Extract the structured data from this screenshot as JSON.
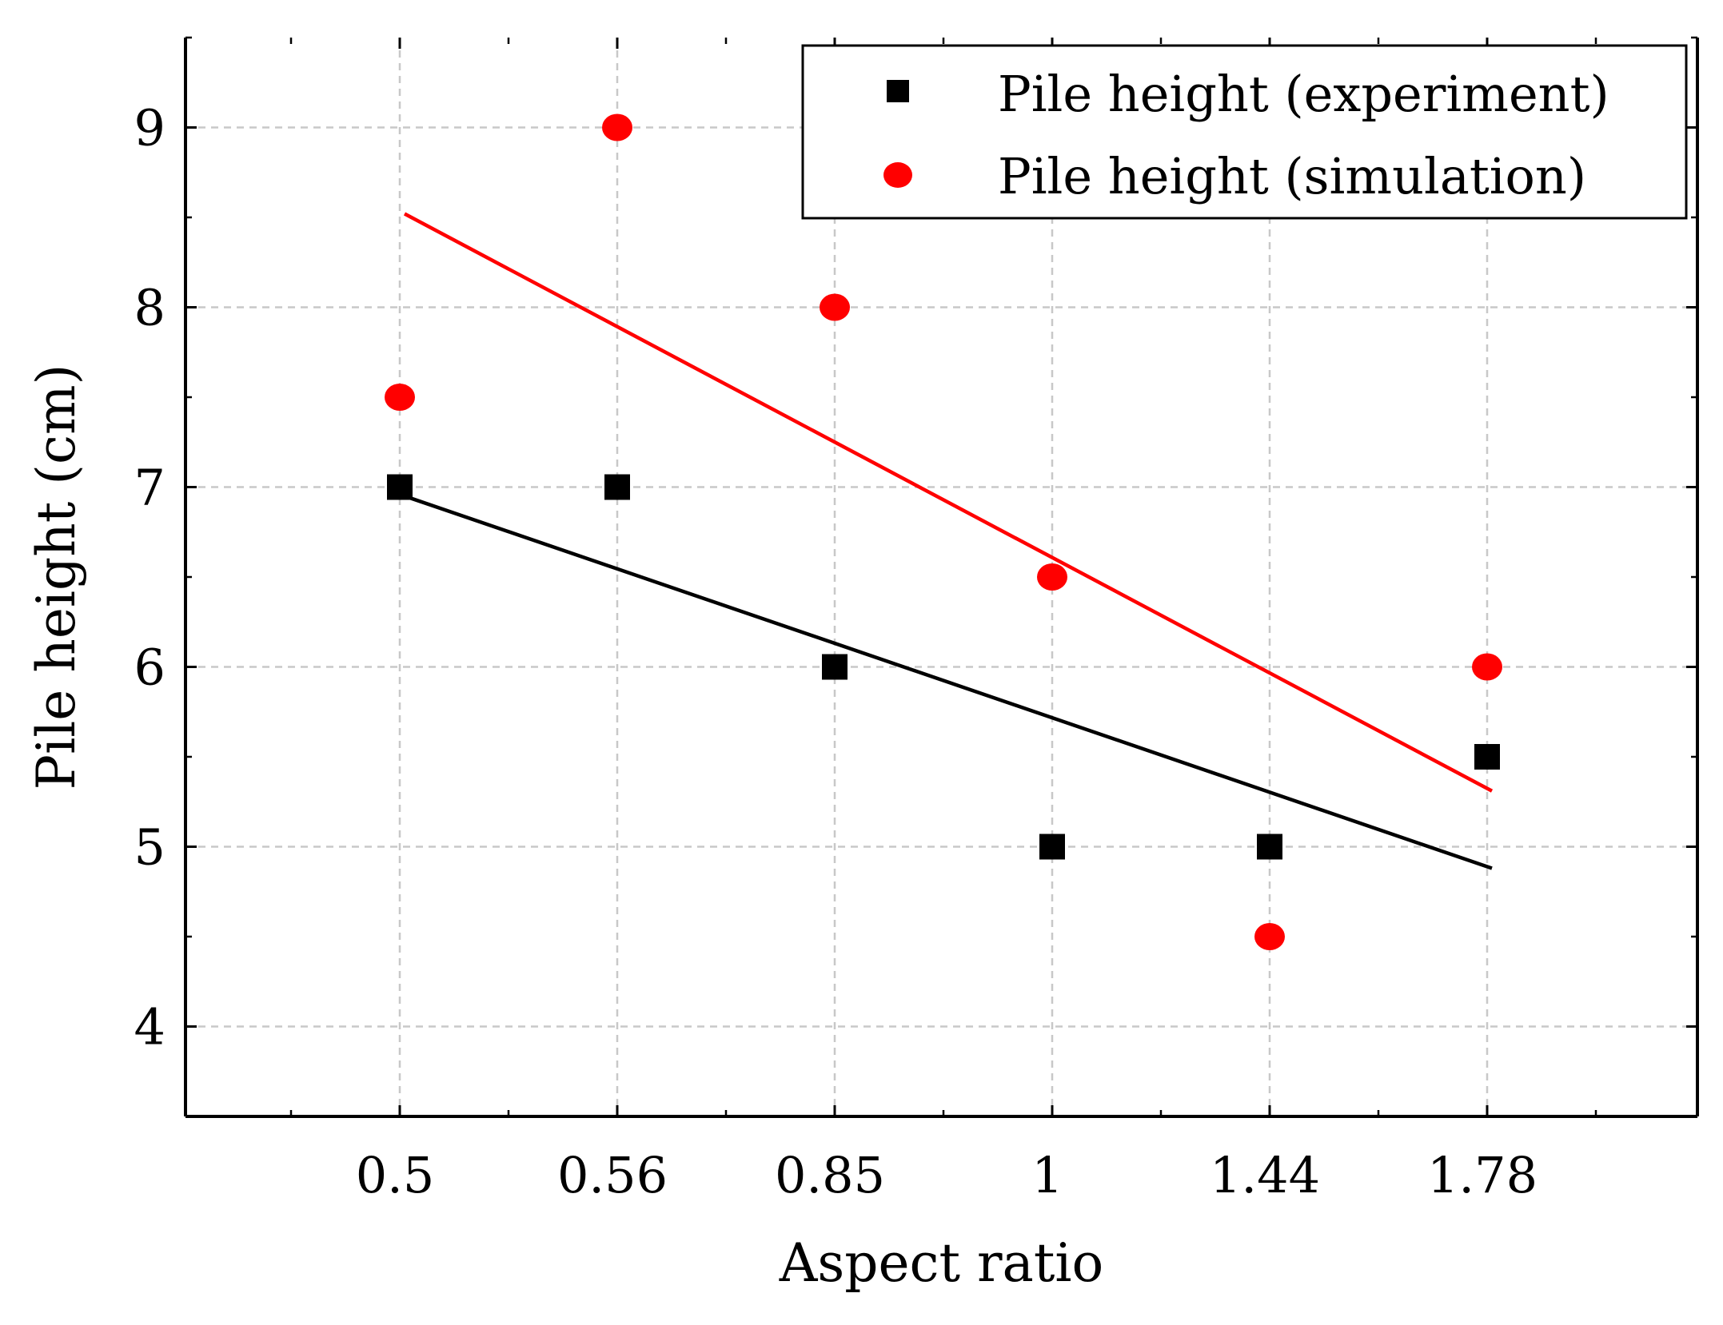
{
  "chart_data": {
    "type": "scatter",
    "title": "",
    "xlabel": "Aspect ratio",
    "ylabel": "Pile height (cm)",
    "categories": [
      "0.5",
      "0.56",
      "0.85",
      "1",
      "1.44",
      "1.78"
    ],
    "ylim": [
      3.5,
      9.5
    ],
    "yticks": [
      "4",
      "5",
      "6",
      "7",
      "8",
      "9"
    ],
    "grid": true,
    "legend_position": "top-right",
    "series": [
      {
        "name": "Pile height (experiment)",
        "marker": "square",
        "color": "#000000",
        "values": [
          7,
          7,
          6,
          5,
          5,
          5.5
        ],
        "trend_line": {
          "start": 6.95,
          "end": 4.88,
          "x_start": "0.5",
          "x_end": "1.78"
        }
      },
      {
        "name": "Pile height (simulation)",
        "marker": "circle",
        "color": "#ff0000",
        "values": [
          7.5,
          9,
          8,
          6.5,
          4.5,
          6
        ],
        "trend_line": {
          "start": 8.52,
          "end": 5.31,
          "x_start": "0.5",
          "x_end": "1.78"
        }
      }
    ]
  }
}
